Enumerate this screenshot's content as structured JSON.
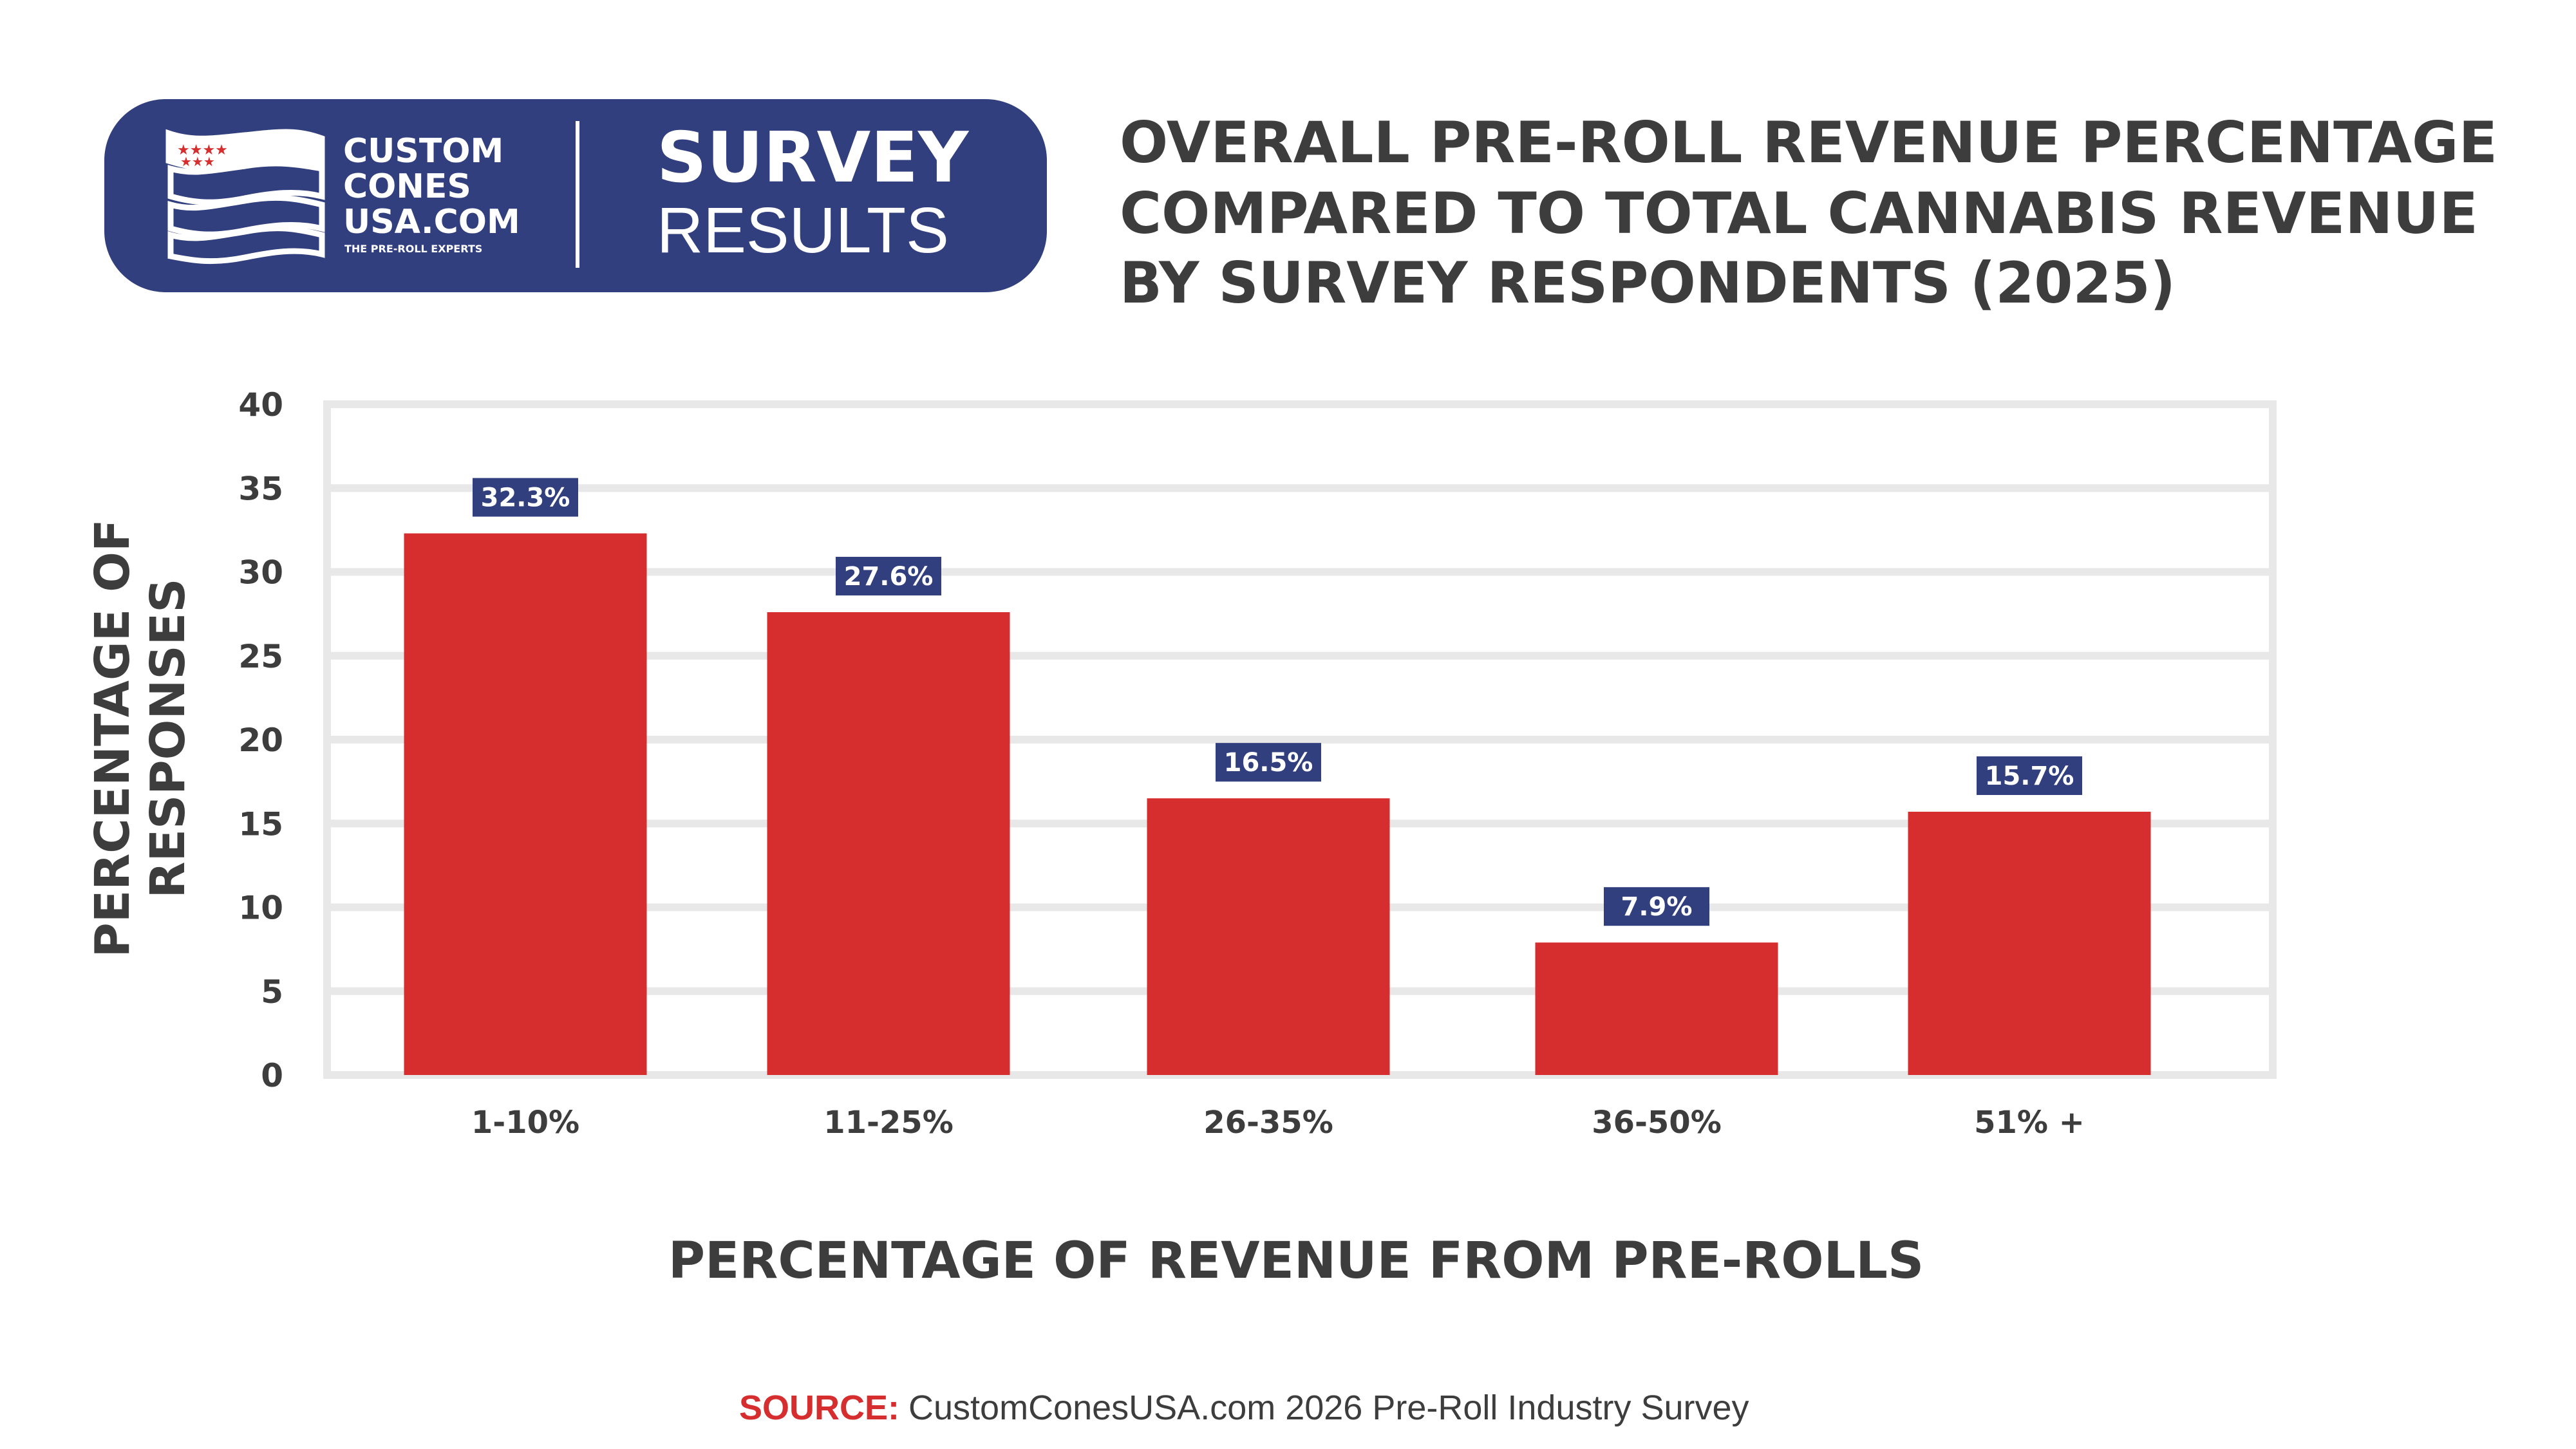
{
  "header": {
    "logo": {
      "brand_lines": [
        "CUSTOM",
        "CONES",
        "USA.COM"
      ],
      "tagline": "THE PRE-ROLL EXPERTS",
      "badge_top": "SURVEY",
      "badge_bottom": "RESULTS"
    },
    "title_lines": [
      "OVERALL PRE-ROLL REVENUE PERCENTAGE",
      "COMPARED TO TOTAL CANNABIS REVENUE",
      "BY SURVEY RESPONDENTS (2025)"
    ]
  },
  "chart_data": {
    "type": "bar",
    "title": "OVERALL PRE-ROLL REVENUE PERCENTAGE COMPARED TO TOTAL CANNABIS REVENUE BY SURVEY RESPONDENTS (2025)",
    "categories": [
      "1-10%",
      "11-25%",
      "26-35%",
      "36-50%",
      "51% +"
    ],
    "values": [
      32.3,
      27.6,
      16.5,
      7.9,
      15.7
    ],
    "data_labels": [
      "32.3%",
      "27.6%",
      "16.5%",
      "7.9%",
      "15.7%"
    ],
    "xlabel": "PERCENTAGE OF REVENUE FROM PRE-ROLLS",
    "ylabel_lines": [
      "PERCENTAGE OF",
      "RESPONSES"
    ],
    "ylim": [
      0,
      40
    ],
    "yticks": [
      "0",
      "5",
      "10",
      "15",
      "20",
      "25",
      "30",
      "35",
      "40"
    ],
    "grid": true,
    "legend": "none"
  },
  "footer": {
    "source_label": "SOURCE:",
    "source_text": "CustomConesUSA.com 2026 Pre-Roll Industry Survey"
  },
  "colors": {
    "brand_blue": "#323f7e",
    "bar_red": "#d62e2f",
    "text_dark": "#3d3d3d",
    "grid": "#e8e8e8"
  }
}
